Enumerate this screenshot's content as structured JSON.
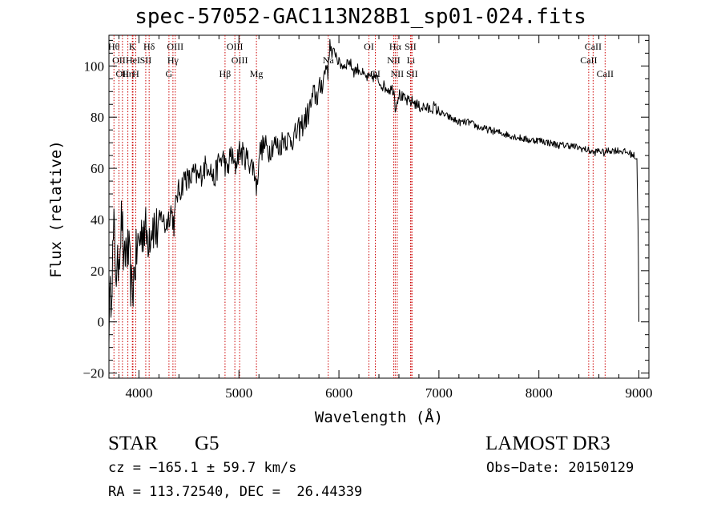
{
  "chart_data": {
    "type": "line",
    "title": "spec-57052-GAC113N28B1_sp01-024.fits",
    "xlabel": "Wavelength (Å)",
    "ylabel": "Flux (relative)",
    "xlim": [
      3700,
      9100
    ],
    "ylim": [
      -22,
      112
    ],
    "xticks": [
      4000,
      5000,
      6000,
      7000,
      8000,
      9000
    ],
    "yticks": [
      -20,
      0,
      20,
      40,
      60,
      80,
      100
    ],
    "tick_labels_y": [
      "−20",
      "0",
      "20",
      "40",
      "60",
      "80",
      "100"
    ],
    "series": [
      {
        "name": "flux",
        "x": [
          3700,
          3720,
          3750,
          3780,
          3800,
          3830,
          3850,
          3870,
          3900,
          3930,
          3960,
          3990,
          4020,
          4050,
          4080,
          4110,
          4140,
          4170,
          4200,
          4230,
          4260,
          4290,
          4320,
          4350,
          4380,
          4420,
          4460,
          4500,
          4550,
          4600,
          4650,
          4700,
          4750,
          4800,
          4850,
          4880,
          4920,
          4960,
          5000,
          5050,
          5100,
          5150,
          5180,
          5200,
          5250,
          5300,
          5350,
          5400,
          5450,
          5500,
          5550,
          5600,
          5650,
          5700,
          5750,
          5780,
          5820,
          5850,
          5880,
          5895,
          5910,
          5930,
          5960,
          6000,
          6050,
          6100,
          6150,
          6200,
          6250,
          6300,
          6350,
          6400,
          6450,
          6500,
          6550,
          6563,
          6600,
          6650,
          6700,
          6750,
          6800,
          6850,
          6900,
          6950,
          7000,
          7100,
          7200,
          7300,
          7400,
          7500,
          7600,
          7700,
          7800,
          7900,
          8000,
          8100,
          8200,
          8300,
          8400,
          8500,
          8550,
          8600,
          8650,
          8700,
          8800,
          8900,
          8950,
          8980,
          8990,
          8995,
          9000
        ],
        "values": [
          0,
          12,
          35,
          15,
          28,
          42,
          18,
          30,
          25,
          10,
          22,
          30,
          34,
          38,
          33,
          36,
          39,
          35,
          38,
          42,
          37,
          40,
          44,
          38,
          50,
          52,
          57,
          55,
          58,
          56,
          60,
          62,
          55,
          63,
          64,
          58,
          66,
          60,
          67,
          65,
          63,
          60,
          52,
          66,
          69,
          67,
          70,
          68,
          72,
          71,
          72,
          75,
          78,
          82,
          89,
          88,
          92,
          96,
          101,
          98,
          110,
          104,
          106,
          101,
          100,
          102,
          98,
          99,
          96,
          95,
          96,
          94,
          92,
          91,
          91,
          84,
          89,
          87,
          86,
          86,
          84,
          84,
          83,
          84,
          82,
          80,
          78,
          78,
          76,
          75,
          74,
          73,
          72,
          71,
          71,
          70,
          69,
          69,
          68,
          67,
          66,
          67,
          66,
          67,
          67,
          66,
          65,
          64,
          40,
          25,
          0
        ]
      }
    ],
    "line_markers": [
      {
        "wave": 3750,
        "label": "Hθ",
        "row": 1
      },
      {
        "wave": 3800,
        "label": "OII",
        "row": 2
      },
      {
        "wave": 3835,
        "label": "OII",
        "row": 3
      },
      {
        "wave": 3889,
        "label": "Hη",
        "row": 3
      },
      {
        "wave": 3934,
        "label": "K",
        "row": 1
      },
      {
        "wave": 3940,
        "label": "HeI",
        "row": 2
      },
      {
        "wave": 3968,
        "label": "H",
        "row": 3
      },
      {
        "wave": 4068,
        "label": "SII",
        "row": 2
      },
      {
        "wave": 4102,
        "label": "Hδ",
        "row": 1
      },
      {
        "wave": 4300,
        "label": "G",
        "row": 3
      },
      {
        "wave": 4340,
        "label": "Hγ",
        "row": 2
      },
      {
        "wave": 4363,
        "label": "OIII",
        "row": 1
      },
      {
        "wave": 4861,
        "label": "Hβ",
        "row": 3
      },
      {
        "wave": 4959,
        "label": "OIII",
        "row": 1
      },
      {
        "wave": 5007,
        "label": "OIII",
        "row": 2
      },
      {
        "wave": 5175,
        "label": "Mg",
        "row": 3
      },
      {
        "wave": 5893,
        "label": "Na",
        "row": 2
      },
      {
        "wave": 6300,
        "label": "OI",
        "row": 1
      },
      {
        "wave": 6364,
        "label": "OI",
        "row": 3
      },
      {
        "wave": 6548,
        "label": "NII",
        "row": 2
      },
      {
        "wave": 6563,
        "label": "Hα",
        "row": 1
      },
      {
        "wave": 6583,
        "label": "NII",
        "row": 3
      },
      {
        "wave": 6716,
        "label": "SII",
        "row": 1
      },
      {
        "wave": 6720,
        "label": "Li",
        "row": 2
      },
      {
        "wave": 6731,
        "label": "SII",
        "row": 3
      },
      {
        "wave": 8498,
        "label": "CaII",
        "row": 2
      },
      {
        "wave": 8542,
        "label": "CaII",
        "row": 1
      },
      {
        "wave": 8662,
        "label": "CaII",
        "row": 3
      }
    ]
  },
  "info": {
    "class": "STAR",
    "subclass": "G5",
    "survey": "LAMOST DR3",
    "cz": "cz = −165.1 ± 59.7 km/s",
    "obs_date": "Obs−Date: 20150129",
    "coords": "RA = 113.72540, DEC =  26.44339"
  },
  "colors": {
    "axis": "#000000",
    "spectrum": "#000000",
    "marker_line": "#cc0000"
  }
}
